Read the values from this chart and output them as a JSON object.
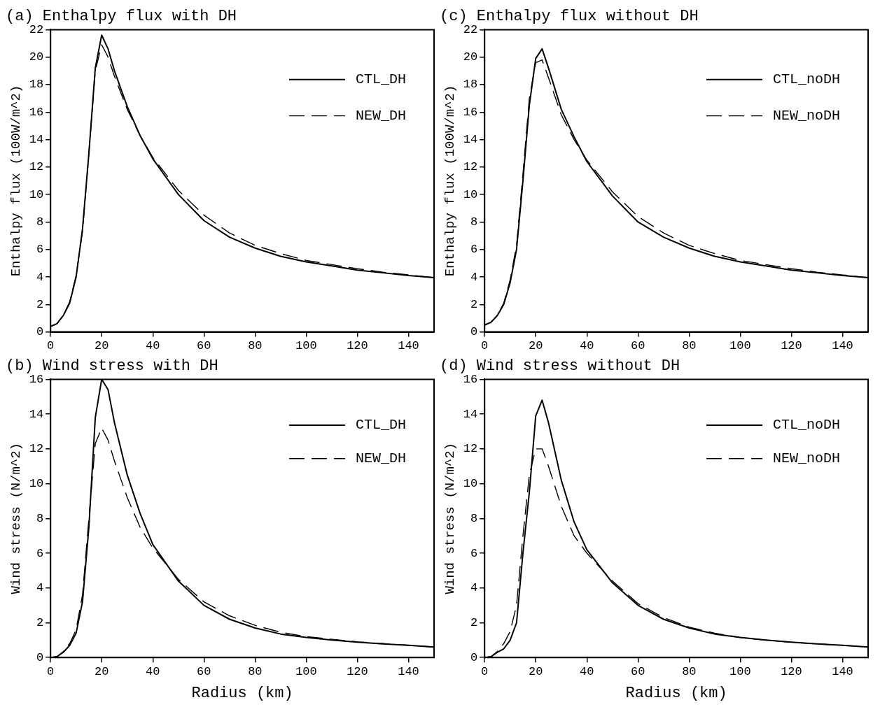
{
  "chart_data": [
    {
      "type": "line",
      "title": "(a) Enthalpy flux with DH",
      "ylabel": "Enthalpy flux (100W/m^2)",
      "x": [
        0,
        2.5,
        5,
        7.5,
        10,
        12.5,
        15,
        17.5,
        20,
        22.5,
        25,
        30,
        35,
        40,
        50,
        60,
        70,
        80,
        90,
        100,
        110,
        120,
        130,
        140,
        150
      ],
      "xlim": [
        0,
        150
      ],
      "xticks": [
        0,
        20,
        40,
        60,
        80,
        100,
        120,
        140
      ],
      "ylim": [
        0,
        22
      ],
      "yticks": [
        0,
        2,
        4,
        6,
        8,
        10,
        12,
        14,
        16,
        18,
        20,
        22
      ],
      "legend": "top right",
      "marker": "none",
      "series": [
        {
          "name": "CTL_DH",
          "color": "#000000",
          "line_style": "solid",
          "values": [
            0.4,
            0.6,
            1.2,
            2.1,
            4,
            7.5,
            13,
            19.2,
            21.6,
            20.6,
            19,
            16.4,
            14.3,
            12.6,
            10,
            8.1,
            6.9,
            6.1,
            5.5,
            5.1,
            4.8,
            4.5,
            4.3,
            4.1,
            3.95
          ]
        },
        {
          "name": "NEW_DH",
          "color": "#000000",
          "line_style": "dashed",
          "values": [
            0.4,
            0.6,
            1.2,
            2.2,
            4.1,
            7.3,
            13,
            19,
            20.9,
            20,
            18.6,
            16.2,
            14.3,
            12.7,
            10.3,
            8.5,
            7.2,
            6.3,
            5.7,
            5.2,
            4.9,
            4.6,
            4.35,
            4.15,
            3.95
          ]
        }
      ]
    },
    {
      "type": "line",
      "title": "(c) Enthalpy flux without DH",
      "ylabel": "Enthalpy flux (100W/m^2)",
      "x": [
        0,
        2.5,
        5,
        7.5,
        10,
        12.5,
        15,
        17.5,
        20,
        22.5,
        25,
        30,
        35,
        40,
        50,
        60,
        70,
        80,
        90,
        100,
        110,
        120,
        130,
        140,
        150
      ],
      "xlim": [
        0,
        150
      ],
      "xticks": [
        0,
        20,
        40,
        60,
        80,
        100,
        120,
        140
      ],
      "ylim": [
        0,
        22
      ],
      "yticks": [
        0,
        2,
        4,
        6,
        8,
        10,
        12,
        14,
        16,
        18,
        20,
        22
      ],
      "legend": "top right",
      "marker": "none",
      "series": [
        {
          "name": "CTL_noDH",
          "color": "#000000",
          "line_style": "solid",
          "values": [
            0.5,
            0.7,
            1.2,
            2,
            3.6,
            6,
            11,
            16.5,
            19.9,
            20.6,
            19.2,
            16.2,
            14.2,
            12.4,
            9.9,
            8,
            6.9,
            6.1,
            5.5,
            5.1,
            4.8,
            4.5,
            4.3,
            4.1,
            3.95
          ]
        },
        {
          "name": "NEW_noDH",
          "color": "#000000",
          "line_style": "dashed",
          "values": [
            0.5,
            0.7,
            1.2,
            2.1,
            3.8,
            6.3,
            11.5,
            17,
            19.6,
            19.8,
            18.5,
            15.8,
            14,
            12.5,
            10.2,
            8.4,
            7.2,
            6.3,
            5.7,
            5.2,
            4.9,
            4.6,
            4.35,
            4.15,
            3.95
          ]
        }
      ]
    },
    {
      "type": "line",
      "title": "(b) Wind stress with DH",
      "xlabel": "Radius (km)",
      "ylabel": "Wind stress (N/m^2)",
      "x": [
        0,
        2.5,
        5,
        7.5,
        10,
        12.5,
        15,
        17.5,
        20,
        22.5,
        25,
        30,
        35,
        40,
        50,
        60,
        70,
        80,
        90,
        100,
        110,
        120,
        130,
        140,
        150
      ],
      "xlim": [
        0,
        150
      ],
      "xticks": [
        0,
        20,
        40,
        60,
        80,
        100,
        120,
        140
      ],
      "ylim": [
        0,
        16
      ],
      "yticks": [
        0,
        2,
        4,
        6,
        8,
        10,
        12,
        14,
        16
      ],
      "legend": "top right",
      "marker": "none",
      "series": [
        {
          "name": "CTL_DH",
          "color": "#000000",
          "line_style": "solid",
          "values": [
            0,
            0.05,
            0.3,
            0.7,
            1.4,
            3.2,
            7.5,
            13.8,
            16,
            15.4,
            13.5,
            10.5,
            8.3,
            6.5,
            4.4,
            3,
            2.2,
            1.7,
            1.35,
            1.15,
            1,
            0.88,
            0.78,
            0.7,
            0.6
          ]
        },
        {
          "name": "NEW_DH",
          "color": "#000000",
          "line_style": "dashed",
          "values": [
            0,
            0.05,
            0.35,
            0.8,
            1.6,
            3.6,
            8,
            12.3,
            13.2,
            12.5,
            11.3,
            9.2,
            7.5,
            6.3,
            4.5,
            3.2,
            2.4,
            1.85,
            1.45,
            1.2,
            1.05,
            0.9,
            0.8,
            0.7,
            0.6
          ]
        }
      ]
    },
    {
      "type": "line",
      "title": "(d) Wind stress without DH",
      "xlabel": "Radius (km)",
      "ylabel": "Wind stress (N/m^2)",
      "x": [
        0,
        2.5,
        5,
        7.5,
        10,
        12.5,
        15,
        17.5,
        20,
        22.5,
        25,
        30,
        35,
        40,
        50,
        60,
        70,
        80,
        90,
        100,
        110,
        120,
        130,
        140,
        150
      ],
      "xlim": [
        0,
        150
      ],
      "xticks": [
        0,
        20,
        40,
        60,
        80,
        100,
        120,
        140
      ],
      "ylim": [
        0,
        16
      ],
      "yticks": [
        0,
        2,
        4,
        6,
        8,
        10,
        12,
        14,
        16
      ],
      "legend": "top right",
      "marker": "none",
      "series": [
        {
          "name": "CTL_noDH",
          "color": "#000000",
          "line_style": "solid",
          "values": [
            0,
            0.05,
            0.3,
            0.5,
            1,
            2,
            6,
            9.5,
            13.9,
            14.8,
            13.5,
            10.2,
            7.8,
            6.2,
            4.3,
            3,
            2.2,
            1.7,
            1.35,
            1.15,
            1,
            0.88,
            0.78,
            0.7,
            0.6
          ]
        },
        {
          "name": "NEW_noDH",
          "color": "#000000",
          "line_style": "dashed",
          "values": [
            0,
            0.05,
            0.35,
            0.8,
            1.5,
            3,
            7,
            10.5,
            12,
            12,
            11,
            8.7,
            7,
            6,
            4.4,
            3.1,
            2.3,
            1.75,
            1.4,
            1.15,
            1,
            0.88,
            0.78,
            0.7,
            0.6
          ]
        }
      ]
    }
  ]
}
